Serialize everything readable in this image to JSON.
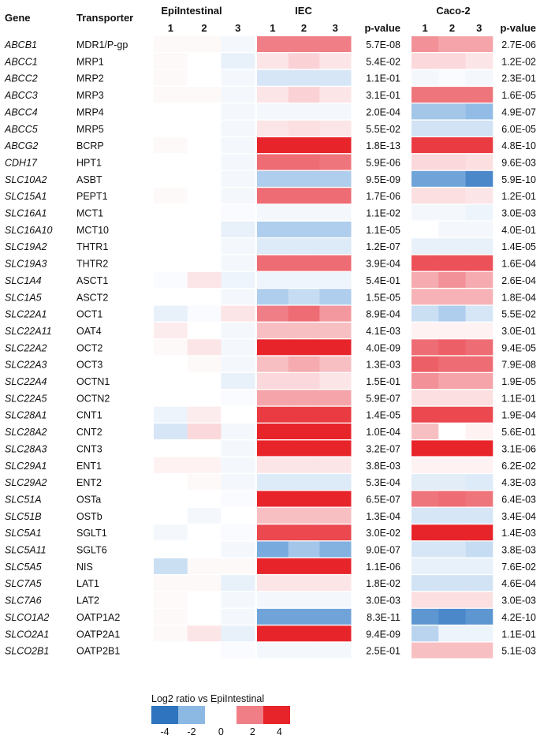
{
  "chart_data": {
    "type": "heatmap",
    "legend": {
      "title": "Log2 ratio vs EpiIntestinal",
      "ticks": [
        "-4",
        "-2",
        "0",
        "2",
        "4"
      ],
      "range": [
        -4,
        4
      ],
      "colors": {
        "neg_strong": "#2f74bf",
        "neg_mid": "#8cb8e4",
        "pos_mid": "#f07e86",
        "pos_strong": "#e8242b"
      }
    },
    "row_headers": {
      "gene": "Gene",
      "transporter": "Transporter"
    },
    "groups": [
      {
        "name": "EpiIntestinal",
        "replicates": [
          "1",
          "2",
          "3"
        ],
        "has_pvalue": false
      },
      {
        "name": "IEC",
        "replicates": [
          "1",
          "2",
          "3"
        ],
        "has_pvalue": true,
        "pvalue_label": "p-value"
      },
      {
        "name": "Caco-2",
        "replicates": [
          "1",
          "2",
          "3"
        ],
        "has_pvalue": true,
        "pvalue_label": "p-value"
      }
    ],
    "rows": [
      {
        "gene": "ABCB1",
        "transporter": "MDR1/P-gp",
        "epi": [
          0.1,
          0.1,
          -0.2
        ],
        "iec": [
          2.0,
          2.0,
          2.0
        ],
        "iec_p": "5.7E-08",
        "caco": [
          1.7,
          1.4,
          1.4
        ],
        "caco_p": "2.7E-06"
      },
      {
        "gene": "ABCC1",
        "transporter": "MRP1",
        "epi": [
          0.1,
          0.0,
          -0.4
        ],
        "iec": [
          0.4,
          0.7,
          0.4
        ],
        "iec_p": "5.4E-02",
        "caco": [
          0.6,
          0.6,
          0.4
        ],
        "caco_p": "1.2E-02"
      },
      {
        "gene": "ABCC2",
        "transporter": "MRP2",
        "epi": [
          0.1,
          0.0,
          -0.2
        ],
        "iec": [
          -0.7,
          -0.7,
          -0.7
        ],
        "iec_p": "1.1E-01",
        "caco": [
          -0.2,
          -0.1,
          -0.2
        ],
        "caco_p": "2.3E-01"
      },
      {
        "gene": "ABCC3",
        "transporter": "MRP3",
        "epi": [
          0.1,
          0.1,
          -0.2
        ],
        "iec": [
          0.4,
          0.7,
          0.4
        ],
        "iec_p": "3.1E-01",
        "caco": [
          2.2,
          2.2,
          2.2
        ],
        "caco_p": "1.6E-05"
      },
      {
        "gene": "ABCC4",
        "transporter": "MRP4",
        "epi": [
          0.0,
          0.0,
          -0.2
        ],
        "iec": [
          -0.2,
          -0.2,
          -0.2
        ],
        "iec_p": "2.0E-04",
        "caco": [
          -1.6,
          -1.6,
          -1.9
        ],
        "caco_p": "4.9E-07"
      },
      {
        "gene": "ABCC5",
        "transporter": "MRP5",
        "epi": [
          0.0,
          0.0,
          -0.2
        ],
        "iec": [
          0.4,
          0.5,
          0.4
        ],
        "iec_p": "5.5E-02",
        "caco": [
          -0.8,
          -0.8,
          -0.8
        ],
        "caco_p": "6.0E-05"
      },
      {
        "gene": "ABCG2",
        "transporter": "BCRP",
        "epi": [
          0.1,
          0.0,
          -0.2
        ],
        "iec": [
          4.0,
          4.0,
          4.0
        ],
        "iec_p": "1.8E-13",
        "caco": [
          3.5,
          3.5,
          3.5
        ],
        "caco_p": "4.8E-10"
      },
      {
        "gene": "CDH17",
        "transporter": "HPT1",
        "epi": [
          0.0,
          0.0,
          -0.2
        ],
        "iec": [
          2.4,
          2.4,
          2.2
        ],
        "iec_p": "5.9E-06",
        "caco": [
          0.6,
          0.6,
          0.5
        ],
        "caco_p": "9.6E-03"
      },
      {
        "gene": "SLC10A2",
        "transporter": "ASBT",
        "epi": [
          0.0,
          0.0,
          -0.2
        ],
        "iec": [
          -1.4,
          -1.4,
          -1.4
        ],
        "iec_p": "9.5E-09",
        "caco": [
          -2.6,
          -2.6,
          -3.4
        ],
        "caco_p": "5.9E-10"
      },
      {
        "gene": "SLC15A1",
        "transporter": "PEPT1",
        "epi": [
          0.1,
          0.0,
          -0.2
        ],
        "iec": [
          2.4,
          2.4,
          2.4
        ],
        "iec_p": "1.7E-06",
        "caco": [
          0.5,
          0.5,
          0.4
        ],
        "caco_p": "1.2E-01"
      },
      {
        "gene": "SLC16A1",
        "transporter": "MCT1",
        "epi": [
          0.0,
          0.0,
          -0.1
        ],
        "iec": [
          -0.2,
          -0.2,
          -0.2
        ],
        "iec_p": "1.1E-02",
        "caco": [
          -0.2,
          -0.2,
          -0.3
        ],
        "caco_p": "3.0E-03"
      },
      {
        "gene": "SLC16A10",
        "transporter": "MCT10",
        "epi": [
          0.0,
          0.0,
          -0.4
        ],
        "iec": [
          -1.4,
          -1.4,
          -1.4
        ],
        "iec_p": "1.1E-05",
        "caco": [
          0.0,
          -0.2,
          -0.2
        ],
        "caco_p": "4.0E-01"
      },
      {
        "gene": "SLC19A2",
        "transporter": "THTR1",
        "epi": [
          0.0,
          0.0,
          -0.2
        ],
        "iec": [
          -0.6,
          -0.6,
          -0.6
        ],
        "iec_p": "1.2E-07",
        "caco": [
          -0.4,
          -0.4,
          -0.4
        ],
        "caco_p": "1.4E-05"
      },
      {
        "gene": "SLC19A3",
        "transporter": "THTR2",
        "epi": [
          0.0,
          0.0,
          -0.2
        ],
        "iec": [
          2.4,
          2.4,
          2.4
        ],
        "iec_p": "3.9E-04",
        "caco": [
          3.0,
          3.0,
          3.0
        ],
        "caco_p": "1.6E-04"
      },
      {
        "gene": "SLC1A4",
        "transporter": "ASCT1",
        "epi": [
          -0.1,
          0.4,
          -0.3
        ],
        "iec": [
          -0.3,
          -0.3,
          -0.3
        ],
        "iec_p": "5.4E-01",
        "caco": [
          1.3,
          1.7,
          1.3
        ],
        "caco_p": "2.6E-04"
      },
      {
        "gene": "SLC1A5",
        "transporter": "ASCT2",
        "epi": [
          0.0,
          0.0,
          -0.2
        ],
        "iec": [
          -1.4,
          -1.0,
          -1.4
        ],
        "iec_p": "1.5E-05",
        "caco": [
          1.2,
          1.2,
          1.2
        ],
        "caco_p": "1.8E-04"
      },
      {
        "gene": "SLC22A1",
        "transporter": "OCT1",
        "epi": [
          -0.4,
          -0.1,
          0.4
        ],
        "iec": [
          2.0,
          2.4,
          1.6
        ],
        "iec_p": "8.9E-04",
        "caco": [
          -0.9,
          -1.4,
          -0.7
        ],
        "caco_p": "5.5E-02"
      },
      {
        "gene": "SLC22A11",
        "transporter": "OAT4",
        "epi": [
          0.3,
          0.0,
          -0.2
        ],
        "iec": [
          1.0,
          1.0,
          1.0
        ],
        "iec_p": "4.1E-03",
        "caco": [
          0.2,
          0.2,
          0.2
        ],
        "caco_p": "3.0E-01"
      },
      {
        "gene": "SLC22A2",
        "transporter": "OCT2",
        "epi": [
          0.1,
          0.4,
          -0.2
        ],
        "iec": [
          4.0,
          4.0,
          4.0
        ],
        "iec_p": "4.0E-09",
        "caco": [
          2.4,
          2.7,
          2.4
        ],
        "caco_p": "9.4E-05"
      },
      {
        "gene": "SLC22A3",
        "transporter": "OCT3",
        "epi": [
          0.0,
          0.1,
          -0.2
        ],
        "iec": [
          1.0,
          1.3,
          1.0
        ],
        "iec_p": "1.3E-03",
        "caco": [
          2.7,
          2.4,
          2.4
        ],
        "caco_p": "7.9E-08"
      },
      {
        "gene": "SLC22A4",
        "transporter": "OCTN1",
        "epi": [
          0.0,
          0.0,
          -0.4
        ],
        "iec": [
          0.6,
          0.6,
          0.4
        ],
        "iec_p": "1.5E-01",
        "caco": [
          1.7,
          1.4,
          1.4
        ],
        "caco_p": "1.9E-05"
      },
      {
        "gene": "SLC22A5",
        "transporter": "OCTN2",
        "epi": [
          0.0,
          0.0,
          -0.1
        ],
        "iec": [
          1.4,
          1.4,
          1.4
        ],
        "iec_p": "5.9E-07",
        "caco": [
          0.5,
          0.5,
          0.5
        ],
        "caco_p": "1.1E-01"
      },
      {
        "gene": "SLC28A1",
        "transporter": "CNT1",
        "epi": [
          -0.3,
          0.3,
          0.0
        ],
        "iec": [
          3.5,
          3.5,
          3.5
        ],
        "iec_p": "1.4E-05",
        "caco": [
          3.2,
          3.2,
          3.2
        ],
        "caco_p": "1.9E-04"
      },
      {
        "gene": "SLC28A2",
        "transporter": "CNT2",
        "epi": [
          -0.7,
          0.6,
          -0.2
        ],
        "iec": [
          4.0,
          4.0,
          4.0
        ],
        "iec_p": "1.0E-04",
        "caco": [
          1.0,
          0.0,
          0.2
        ],
        "caco_p": "5.6E-01"
      },
      {
        "gene": "SLC28A3",
        "transporter": "CNT3",
        "epi": [
          0.0,
          0.0,
          -0.2
        ],
        "iec": [
          4.0,
          4.0,
          4.0
        ],
        "iec_p": "3.2E-07",
        "caco": [
          4.0,
          4.0,
          4.0
        ],
        "caco_p": "3.1E-06"
      },
      {
        "gene": "SLC29A1",
        "transporter": "ENT1",
        "epi": [
          0.2,
          0.2,
          -0.2
        ],
        "iec": [
          0.4,
          0.4,
          0.4
        ],
        "iec_p": "3.8E-03",
        "caco": [
          0.2,
          0.2,
          0.2
        ],
        "caco_p": "6.2E-02"
      },
      {
        "gene": "SLC29A2",
        "transporter": "ENT2",
        "epi": [
          0.0,
          0.1,
          -0.2
        ],
        "iec": [
          -0.6,
          -0.6,
          -0.6
        ],
        "iec_p": "5.3E-04",
        "caco": [
          -0.5,
          -0.5,
          -0.6
        ],
        "caco_p": "4.3E-03"
      },
      {
        "gene": "SLC51A",
        "transporter": "OSTa",
        "epi": [
          0.0,
          0.0,
          -0.1
        ],
        "iec": [
          4.0,
          4.0,
          4.0
        ],
        "iec_p": "6.5E-07",
        "caco": [
          2.2,
          2.4,
          2.2
        ],
        "caco_p": "6.4E-03"
      },
      {
        "gene": "SLC51B",
        "transporter": "OSTb",
        "epi": [
          0.0,
          -0.2,
          0.0
        ],
        "iec": [
          1.0,
          1.0,
          1.0
        ],
        "iec_p": "1.3E-04",
        "caco": [
          -0.7,
          -0.7,
          -0.7
        ],
        "caco_p": "3.4E-04"
      },
      {
        "gene": "SLC5A1",
        "transporter": "SGLT1",
        "epi": [
          -0.2,
          0.0,
          -0.1
        ],
        "iec": [
          3.2,
          3.2,
          3.2
        ],
        "iec_p": "3.0E-02",
        "caco": [
          4.0,
          4.0,
          4.0
        ],
        "caco_p": "1.4E-03"
      },
      {
        "gene": "SLC5A11",
        "transporter": "SGLT6",
        "epi": [
          0.0,
          0.0,
          -0.2
        ],
        "iec": [
          -2.4,
          -1.6,
          -2.2
        ],
        "iec_p": "9.0E-07",
        "caco": [
          -0.7,
          -0.7,
          -1.0
        ],
        "caco_p": "3.8E-03"
      },
      {
        "gene": "SLC5A5",
        "transporter": "NIS",
        "epi": [
          -0.9,
          0.1,
          0.1
        ],
        "iec": [
          4.0,
          4.0,
          4.0
        ],
        "iec_p": "1.1E-06",
        "caco": [
          -0.4,
          -0.4,
          -0.4
        ],
        "caco_p": "7.6E-02"
      },
      {
        "gene": "SLC7A5",
        "transporter": "LAT1",
        "epi": [
          0.1,
          0.1,
          -0.4
        ],
        "iec": [
          0.4,
          0.4,
          0.4
        ],
        "iec_p": "1.8E-02",
        "caco": [
          -0.8,
          -0.8,
          -0.8
        ],
        "caco_p": "4.6E-04"
      },
      {
        "gene": "SLC7A6",
        "transporter": "LAT2",
        "epi": [
          0.1,
          0.0,
          -0.2
        ],
        "iec": [
          -0.2,
          -0.2,
          -0.2
        ],
        "iec_p": "3.0E-03",
        "caco": [
          0.5,
          0.5,
          0.5
        ],
        "caco_p": "3.0E-03"
      },
      {
        "gene": "SLCO1A2",
        "transporter": "OATP1A2",
        "epi": [
          0.1,
          0.0,
          -0.2
        ],
        "iec": [
          -2.6,
          -2.6,
          -2.6
        ],
        "iec_p": "8.3E-11",
        "caco": [
          -3.0,
          -3.4,
          -3.0
        ],
        "caco_p": "4.2E-10"
      },
      {
        "gene": "SLCO2A1",
        "transporter": "OATP2A1",
        "epi": [
          0.1,
          0.4,
          -0.4
        ],
        "iec": [
          4.0,
          4.0,
          4.0
        ],
        "iec_p": "9.4E-09",
        "caco": [
          -1.2,
          -0.3,
          -0.3
        ],
        "caco_p": "1.1E-01"
      },
      {
        "gene": "SLCO2B1",
        "transporter": "OATP2B1",
        "epi": [
          0.0,
          0.0,
          -0.1
        ],
        "iec": [
          -0.2,
          -0.2,
          -0.2
        ],
        "iec_p": "2.5E-01",
        "caco": [
          1.0,
          1.0,
          1.0
        ],
        "caco_p": "5.1E-03"
      }
    ]
  }
}
